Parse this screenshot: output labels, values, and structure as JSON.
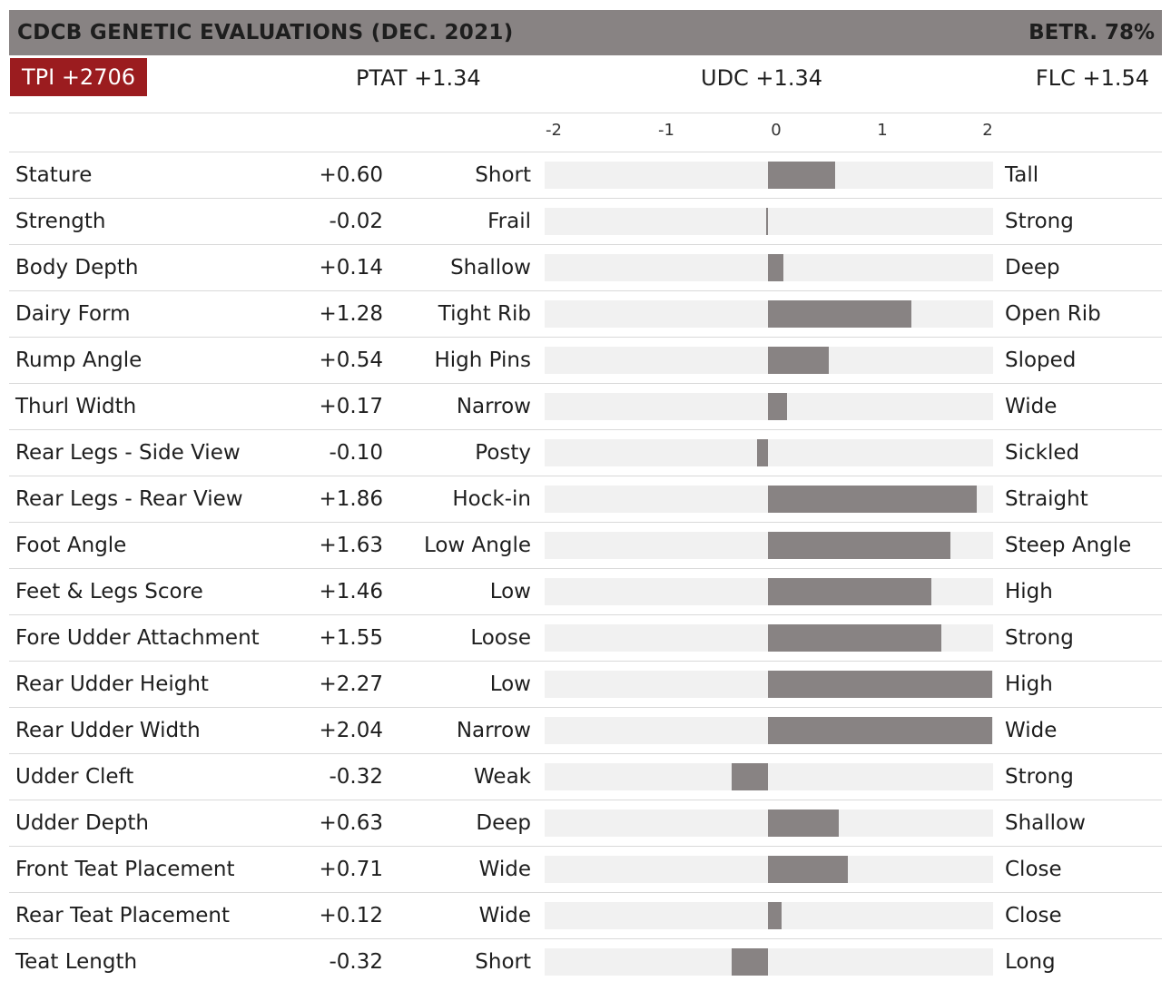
{
  "header": {
    "title": "CDCB GENETIC EVALUATIONS (DEC. 2021)",
    "betr": "BETR. 78%"
  },
  "summary": {
    "tpi": "TPI +2706",
    "ptat": "PTAT +1.34",
    "udc": "UDC +1.34",
    "flc": "FLC +1.54"
  },
  "colors": {
    "bar": "#888383",
    "track": "#f1f1f1",
    "tpi_bg": "#9b1c1f",
    "header_bg": "#888383"
  },
  "chart_data": {
    "type": "bar",
    "orientation": "horizontal",
    "xlim": [
      -2,
      2
    ],
    "ticks": [
      "-2",
      "-1",
      "0",
      "1",
      "2"
    ],
    "rows": [
      {
        "name": "Stature",
        "value_label": "+0.60",
        "value": 0.6,
        "low": "Short",
        "high": "Tall"
      },
      {
        "name": "Strength",
        "value_label": "-0.02",
        "value": -0.02,
        "low": "Frail",
        "high": "Strong"
      },
      {
        "name": "Body Depth",
        "value_label": "+0.14",
        "value": 0.14,
        "low": "Shallow",
        "high": "Deep"
      },
      {
        "name": "Dairy Form",
        "value_label": "+1.28",
        "value": 1.28,
        "low": "Tight Rib",
        "high": "Open Rib"
      },
      {
        "name": "Rump Angle",
        "value_label": "+0.54",
        "value": 0.54,
        "low": "High Pins",
        "high": "Sloped"
      },
      {
        "name": "Thurl Width",
        "value_label": "+0.17",
        "value": 0.17,
        "low": "Narrow",
        "high": "Wide"
      },
      {
        "name": "Rear Legs - Side View",
        "value_label": "-0.10",
        "value": -0.1,
        "low": "Posty",
        "high": "Sickled"
      },
      {
        "name": "Rear Legs - Rear View",
        "value_label": "+1.86",
        "value": 1.86,
        "low": "Hock-in",
        "high": "Straight"
      },
      {
        "name": "Foot Angle",
        "value_label": "+1.63",
        "value": 1.63,
        "low": "Low Angle",
        "high": "Steep Angle"
      },
      {
        "name": "Feet & Legs Score",
        "value_label": "+1.46",
        "value": 1.46,
        "low": "Low",
        "high": "High"
      },
      {
        "name": "Fore Udder Attachment",
        "value_label": "+1.55",
        "value": 1.55,
        "low": "Loose",
        "high": "Strong"
      },
      {
        "name": "Rear Udder Height",
        "value_label": "+2.27",
        "value": 2.27,
        "low": "Low",
        "high": "High"
      },
      {
        "name": "Rear Udder Width",
        "value_label": "+2.04",
        "value": 2.04,
        "low": "Narrow",
        "high": "Wide"
      },
      {
        "name": "Udder Cleft",
        "value_label": "-0.32",
        "value": -0.32,
        "low": "Weak",
        "high": "Strong"
      },
      {
        "name": "Udder Depth",
        "value_label": "+0.63",
        "value": 0.63,
        "low": "Deep",
        "high": "Shallow"
      },
      {
        "name": "Front Teat Placement",
        "value_label": "+0.71",
        "value": 0.71,
        "low": "Wide",
        "high": "Close"
      },
      {
        "name": "Rear Teat Placement",
        "value_label": "+0.12",
        "value": 0.12,
        "low": "Wide",
        "high": "Close"
      },
      {
        "name": "Teat Length",
        "value_label": "-0.32",
        "value": -0.32,
        "low": "Short",
        "high": "Long"
      }
    ]
  }
}
